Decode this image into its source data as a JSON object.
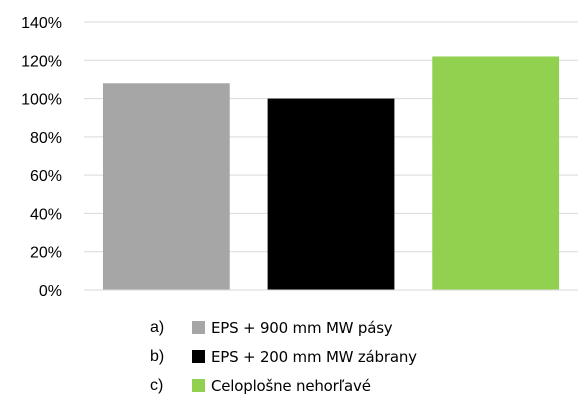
{
  "chart_data": {
    "type": "bar",
    "categories": [
      "a)",
      "b)",
      "c)"
    ],
    "values": [
      108,
      100,
      122
    ],
    "colors": [
      "#a6a6a6",
      "#000000",
      "#92d050"
    ],
    "ylim": [
      0,
      140
    ],
    "yticks": [
      0,
      20,
      40,
      60,
      80,
      100,
      120,
      140
    ],
    "ytick_labels": [
      "0%",
      "20%",
      "40%",
      "60%",
      "80%",
      "100%",
      "120%",
      "140%"
    ],
    "grid": true,
    "gridline_color": "#d9d9d9",
    "legend_placement": "bottom",
    "title": "",
    "xlabel": "",
    "ylabel": ""
  },
  "legend": {
    "items": [
      {
        "letter": "a)",
        "label": "EPS + 900 mm MW pásy",
        "color": "#a6a6a6"
      },
      {
        "letter": "b)",
        "label": "EPS + 200 mm MW zábrany",
        "color": "#000000"
      },
      {
        "letter": "c)",
        "label": "Celoplošne nehorľavé",
        "color": "#92d050"
      }
    ]
  }
}
